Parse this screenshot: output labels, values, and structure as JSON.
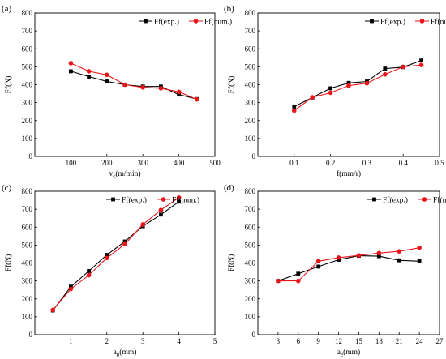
{
  "chart_data": [
    {
      "type": "line",
      "panel_label": "(a)",
      "xlabel": "v",
      "xlabel_sub": "c",
      "xlabel_unit": "(m/min)",
      "ylabel": "Ff(N)",
      "xlim": [
        0,
        500
      ],
      "ylim": [
        0,
        800
      ],
      "xticks": [
        100,
        200,
        300,
        400,
        500
      ],
      "xtick_labels": [
        "100",
        "200",
        "300",
        "400",
        "500"
      ],
      "yticks": [
        0,
        100,
        200,
        300,
        400,
        500,
        600,
        700,
        800
      ],
      "ytick_labels": [
        "0",
        "100",
        "200",
        "300",
        "400",
        "500",
        "600",
        "700",
        "800"
      ],
      "legend_position": "top-right",
      "grid": false,
      "series": [
        {
          "name": "Ff(exp.)",
          "color": "#000000",
          "marker": "square",
          "x": [
            100,
            150,
            200,
            250,
            300,
            350,
            400,
            450
          ],
          "y": [
            475,
            445,
            418,
            400,
            390,
            390,
            345,
            320
          ]
        },
        {
          "name": "Ff(num.)",
          "color": "#e8151b",
          "marker": "circle",
          "x": [
            100,
            150,
            200,
            250,
            300,
            350,
            400,
            450
          ],
          "y": [
            520,
            475,
            455,
            400,
            385,
            380,
            360,
            318
          ]
        }
      ]
    },
    {
      "type": "line",
      "panel_label": "(b)",
      "xlabel": "f",
      "xlabel_sub": "",
      "xlabel_unit": "(mm/r)",
      "ylabel": "Ff(N)",
      "xlim": [
        0,
        0.5
      ],
      "ylim": [
        0,
        800
      ],
      "xticks": [
        0.1,
        0.2,
        0.3,
        0.4,
        0.5
      ],
      "xtick_labels": [
        "0.1",
        "0.2",
        "0.3",
        "0.4",
        "0.5"
      ],
      "yticks": [
        0,
        100,
        200,
        300,
        400,
        500,
        600,
        700,
        800
      ],
      "ytick_labels": [
        "0",
        "100",
        "200",
        "300",
        "400",
        "500",
        "600",
        "700",
        "800"
      ],
      "legend_position": "top-right",
      "grid": false,
      "series": [
        {
          "name": "Ff(exp.)",
          "color": "#000000",
          "marker": "square",
          "x": [
            0.1,
            0.15,
            0.2,
            0.25,
            0.3,
            0.35,
            0.4,
            0.45
          ],
          "y": [
            278,
            328,
            380,
            410,
            418,
            490,
            498,
            535
          ]
        },
        {
          "name": "Ff(num.)",
          "color": "#e8151b",
          "marker": "circle",
          "x": [
            0.1,
            0.15,
            0.2,
            0.25,
            0.3,
            0.35,
            0.4,
            0.45
          ],
          "y": [
            255,
            330,
            355,
            395,
            408,
            458,
            500,
            510
          ]
        }
      ]
    },
    {
      "type": "line",
      "panel_label": "(c)",
      "xlabel": "a",
      "xlabel_sub": "p",
      "xlabel_unit": "(mm)",
      "ylabel": "Ff(N)",
      "xlim": [
        0,
        5
      ],
      "ylim": [
        0,
        800
      ],
      "xticks": [
        1,
        2,
        3,
        4,
        5
      ],
      "xtick_labels": [
        "1",
        "2",
        "3",
        "4",
        "5"
      ],
      "yticks": [
        0,
        100,
        200,
        300,
        400,
        500,
        600,
        700,
        800
      ],
      "ytick_labels": [
        "0",
        "100",
        "200",
        "300",
        "400",
        "500",
        "600",
        "700",
        "800"
      ],
      "legend_position": "top-right",
      "grid": false,
      "series": [
        {
          "name": "Ff(exp.)",
          "color": "#000000",
          "marker": "square",
          "x": [
            0.5,
            1,
            1.5,
            2,
            2.5,
            3,
            3.5,
            4
          ],
          "y": [
            135,
            268,
            355,
            445,
            520,
            605,
            670,
            742
          ]
        },
        {
          "name": "Ff(num.)",
          "color": "#e8151b",
          "marker": "circle",
          "x": [
            0.5,
            1,
            1.5,
            2,
            2.5,
            3,
            3.5,
            4
          ],
          "y": [
            138,
            255,
            332,
            428,
            505,
            615,
            695,
            765
          ]
        }
      ]
    },
    {
      "type": "line",
      "panel_label": "(d)",
      "xlabel": "a",
      "xlabel_sub": "e",
      "xlabel_unit": "(mm)",
      "ylabel": "Ff(N)",
      "xlim": [
        0,
        27
      ],
      "ylim": [
        0,
        800
      ],
      "xticks": [
        3,
        6,
        9,
        12,
        15,
        18,
        21,
        24,
        27
      ],
      "xtick_labels": [
        "3",
        "6",
        "9",
        "12",
        "15",
        "18",
        "21",
        "24",
        "27"
      ],
      "yticks": [
        0,
        100,
        200,
        300,
        400,
        500,
        600,
        700,
        800
      ],
      "ytick_labels": [
        "0",
        "100",
        "200",
        "300",
        "400",
        "500",
        "600",
        "700",
        "800"
      ],
      "legend_position": "top-right",
      "grid": false,
      "series": [
        {
          "name": "Ff(exp.)",
          "color": "#000000",
          "marker": "square",
          "x": [
            3,
            6,
            9,
            12,
            15,
            18,
            21,
            24
          ],
          "y": [
            300,
            340,
            380,
            418,
            440,
            438,
            415,
            410
          ]
        },
        {
          "name": "Ff(num.)",
          "color": "#e8151b",
          "marker": "circle",
          "x": [
            3,
            6,
            9,
            12,
            15,
            18,
            21,
            24
          ],
          "y": [
            300,
            300,
            410,
            430,
            442,
            455,
            465,
            485
          ]
        }
      ]
    }
  ]
}
